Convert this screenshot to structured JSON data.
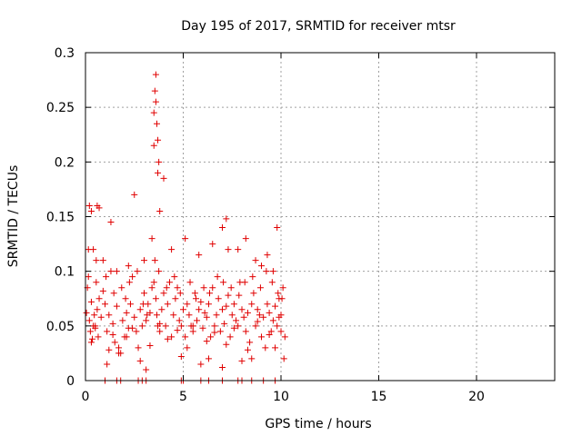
{
  "chart_data": {
    "type": "scatter",
    "title": "Day 195 of 2017, SRMTID for receiver mtsr",
    "xlabel": "GPS time / hours",
    "ylabel": "SRMTID / TECUs",
    "xlim": [
      0,
      24
    ],
    "ylim": [
      0,
      0.3
    ],
    "x_ticks": [
      0,
      5,
      10,
      15,
      20
    ],
    "x_tick_labels": [
      "0",
      "5",
      "10",
      "15",
      "20"
    ],
    "y_ticks": [
      0,
      0.05,
      0.1,
      0.15,
      0.2,
      0.25,
      0.3
    ],
    "y_tick_labels": [
      "0",
      "0.05",
      "0.1",
      "0.15",
      "0.2",
      "0.25",
      "0.3"
    ],
    "grid": true,
    "marker": "plus",
    "series": [
      {
        "name": "SRMTID",
        "color": "#e00000",
        "x": [
          0.05,
          0.1,
          0.15,
          0.2,
          0.25,
          0.3,
          0.35,
          0.4,
          0.45,
          0.5,
          0.55,
          0.6,
          0.65,
          0.7,
          0.8,
          0.9,
          1.0,
          1.1,
          1.2,
          1.3,
          1.4,
          1.5,
          1.6,
          1.7,
          1.8,
          1.9,
          2.0,
          2.1,
          2.2,
          2.3,
          2.4,
          2.5,
          2.6,
          2.7,
          2.8,
          2.9,
          3.0,
          3.1,
          3.2,
          3.3,
          3.4,
          3.5,
          3.55,
          3.6,
          3.65,
          3.7,
          3.75,
          3.8,
          3.9,
          4.0,
          4.1,
          4.2,
          4.3,
          4.4,
          4.5,
          4.6,
          4.7,
          4.8,
          4.9,
          5.0,
          5.1,
          5.2,
          5.3,
          5.4,
          5.5,
          5.6,
          5.7,
          5.8,
          5.9,
          6.0,
          6.1,
          6.2,
          6.3,
          6.4,
          6.5,
          6.6,
          6.7,
          6.8,
          6.9,
          7.0,
          7.1,
          7.2,
          7.3,
          7.4,
          7.5,
          7.6,
          7.7,
          7.8,
          7.9,
          8.0,
          8.1,
          8.2,
          8.3,
          8.4,
          8.5,
          8.6,
          8.7,
          8.8,
          8.9,
          9.0,
          9.1,
          9.2,
          9.3,
          9.4,
          9.5,
          9.6,
          9.7,
          9.8,
          9.9,
          10.0,
          10.1,
          10.2,
          0.2,
          0.3,
          0.6,
          0.7,
          1.3,
          2.5,
          3.4,
          3.5,
          3.5,
          3.55,
          3.6,
          3.6,
          3.65,
          3.7,
          3.7,
          3.75,
          3.8,
          4.0,
          7.2,
          7.0,
          7.8,
          8.7,
          9.0,
          9.6,
          9.8,
          0.4,
          0.9,
          1.6,
          2.2,
          3.0,
          4.4,
          5.1,
          5.8,
          6.5,
          7.3,
          8.2,
          9.3,
          0.15,
          0.55,
          1.05,
          1.45,
          1.85,
          2.05,
          2.25,
          2.65,
          2.95,
          3.15,
          4.15,
          4.55,
          4.85,
          5.35,
          5.65,
          6.05,
          6.35,
          6.75,
          7.05,
          7.45,
          7.85,
          8.15,
          8.55,
          8.95,
          9.25,
          9.55,
          9.85,
          10.05,
          10.15,
          1.1,
          1.7,
          2.8,
          3.1,
          4.9,
          5.9,
          6.3,
          7.0,
          8.0,
          8.5,
          9.7,
          0.3,
          1.2,
          2.1,
          3.3,
          4.2,
          5.2,
          6.2,
          7.2,
          8.3,
          9.4,
          10.0,
          0.5,
          1.4,
          2.4,
          3.8,
          4.7,
          5.5,
          6.6,
          7.6,
          8.8,
          9.9,
          1.0,
          1.6,
          1.8,
          2.7,
          2.9,
          3.1,
          4.9,
          5.0,
          5.9,
          6.3,
          7.0,
          7.8,
          8.0,
          8.5,
          9.1,
          9.7
        ],
        "y": [
          0.062,
          0.085,
          0.095,
          0.055,
          0.045,
          0.072,
          0.038,
          0.05,
          0.06,
          0.048,
          0.09,
          0.065,
          0.04,
          0.075,
          0.058,
          0.082,
          0.07,
          0.045,
          0.06,
          0.1,
          0.052,
          0.035,
          0.068,
          0.03,
          0.025,
          0.055,
          0.04,
          0.062,
          0.048,
          0.07,
          0.095,
          0.058,
          0.045,
          0.03,
          0.065,
          0.05,
          0.08,
          0.055,
          0.07,
          0.062,
          0.085,
          0.09,
          0.11,
          0.075,
          0.06,
          0.05,
          0.1,
          0.045,
          0.065,
          0.08,
          0.05,
          0.07,
          0.09,
          0.04,
          0.06,
          0.075,
          0.085,
          0.055,
          0.05,
          0.065,
          0.04,
          0.07,
          0.06,
          0.05,
          0.045,
          0.08,
          0.055,
          0.065,
          0.072,
          0.048,
          0.062,
          0.058,
          0.07,
          0.04,
          0.085,
          0.05,
          0.06,
          0.075,
          0.045,
          0.065,
          0.052,
          0.068,
          0.078,
          0.04,
          0.06,
          0.07,
          0.055,
          0.05,
          0.09,
          0.065,
          0.058,
          0.045,
          0.062,
          0.035,
          0.07,
          0.08,
          0.05,
          0.065,
          0.06,
          0.04,
          0.058,
          0.03,
          0.07,
          0.062,
          0.045,
          0.055,
          0.068,
          0.05,
          0.075,
          0.06,
          0.085,
          0.04,
          0.16,
          0.155,
          0.16,
          0.158,
          0.145,
          0.17,
          0.13,
          0.215,
          0.245,
          0.265,
          0.28,
          0.255,
          0.235,
          0.22,
          0.19,
          0.2,
          0.155,
          0.185,
          0.148,
          0.14,
          0.12,
          0.11,
          0.105,
          0.1,
          0.14,
          0.12,
          0.11,
          0.1,
          0.105,
          0.11,
          0.12,
          0.13,
          0.115,
          0.125,
          0.12,
          0.13,
          0.115,
          0.12,
          0.11,
          0.095,
          0.08,
          0.085,
          0.075,
          0.09,
          0.1,
          0.07,
          0.06,
          0.085,
          0.095,
          0.08,
          0.09,
          0.075,
          0.085,
          0.08,
          0.095,
          0.09,
          0.085,
          0.078,
          0.09,
          0.095,
          0.085,
          0.1,
          0.09,
          0.08,
          0.075,
          0.02,
          0.015,
          0.025,
          0.018,
          0.01,
          0.022,
          0.015,
          0.02,
          0.012,
          0.018,
          0.02,
          0.03,
          0.035,
          0.028,
          0.04,
          0.032,
          0.038,
          0.03,
          0.036,
          0.033,
          0.028,
          0.042,
          0.045,
          0.05,
          0.042,
          0.048,
          0.052,
          0.046,
          0.05,
          0.044,
          0.048,
          0.054,
          0.058,
          0,
          0,
          0,
          0,
          0,
          0,
          0,
          0,
          0,
          0,
          0,
          0,
          0,
          0,
          0,
          0
        ]
      }
    ]
  }
}
